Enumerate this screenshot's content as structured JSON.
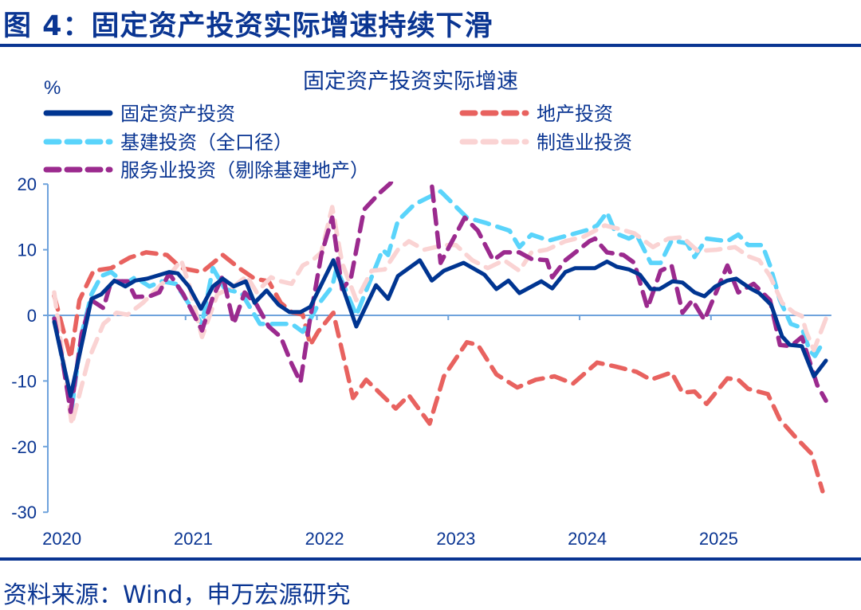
{
  "figure_title": "图 4：固定资产投资实际增速持续下滑",
  "source": "资料来源：Wind，申万宏源研究",
  "chart_data": {
    "type": "line",
    "title": "固定资产投资实际增速",
    "ylabel": "%",
    "xlabel": "",
    "x_unit": "months since Jan 2020",
    "xlim": [
      0,
      71
    ],
    "ylim": [
      -30,
      20
    ],
    "yticks": [
      20,
      10,
      0,
      -10,
      -20,
      -30
    ],
    "xtick_labels": [
      {
        "m": 0,
        "label": "2020"
      },
      {
        "m": 12,
        "label": "2021"
      },
      {
        "m": 24,
        "label": "2022"
      },
      {
        "m": 36,
        "label": "2023"
      },
      {
        "m": 48,
        "label": "2024"
      },
      {
        "m": 60,
        "label": "2025"
      }
    ],
    "grid": false,
    "legend_position": "top",
    "series": [
      {
        "name": "固定资产投资",
        "color": "#003591",
        "style": "solid",
        "points": [
          [
            0,
            -1
          ],
          [
            1.5,
            -12.3
          ],
          [
            3.4,
            2.5
          ],
          [
            4.3,
            3.2
          ],
          [
            5.5,
            5.3
          ],
          [
            6.5,
            4.4
          ],
          [
            7.4,
            5.3
          ],
          [
            8.5,
            5.6
          ],
          [
            10.5,
            6.6
          ],
          [
            11.3,
            6.4
          ],
          [
            12.3,
            4.4
          ],
          [
            13.4,
            1
          ],
          [
            14.5,
            4.4
          ],
          [
            15.4,
            5.6
          ],
          [
            16.4,
            4.4
          ],
          [
            17.5,
            5.2
          ],
          [
            18.3,
            1.9
          ],
          [
            19.4,
            3.8
          ],
          [
            20.5,
            1.6
          ],
          [
            21.5,
            0.5
          ],
          [
            22.5,
            0.5
          ],
          [
            23.4,
            1.3
          ],
          [
            25.5,
            8.4
          ],
          [
            27.6,
            -1.7
          ],
          [
            29.4,
            4.6
          ],
          [
            30.5,
            2.5
          ],
          [
            31.4,
            6
          ],
          [
            33.4,
            8.4
          ],
          [
            34.5,
            5.3
          ],
          [
            35.6,
            6.8
          ],
          [
            37.4,
            8
          ],
          [
            39.3,
            6.2
          ],
          [
            40.4,
            4
          ],
          [
            41.5,
            5.3
          ],
          [
            42.5,
            3.4
          ],
          [
            44.5,
            5.2
          ],
          [
            45.5,
            4.1
          ],
          [
            46.7,
            6.6
          ],
          [
            47.6,
            7.2
          ],
          [
            49.4,
            7.2
          ],
          [
            50.5,
            8.2
          ],
          [
            51.4,
            7.4
          ],
          [
            52.5,
            7
          ],
          [
            53.5,
            6.2
          ],
          [
            54.5,
            4
          ],
          [
            55.3,
            4
          ],
          [
            56.5,
            5.2
          ],
          [
            57.4,
            5
          ],
          [
            58.5,
            3.5
          ],
          [
            59.4,
            2.9
          ],
          [
            60.4,
            4.4
          ],
          [
            61.5,
            5.3
          ],
          [
            62.3,
            5.6
          ],
          [
            63.6,
            4.1
          ],
          [
            64.4,
            3.4
          ],
          [
            65.5,
            1.6
          ],
          [
            66.5,
            -3.2
          ],
          [
            67.2,
            -4.5
          ],
          [
            68.3,
            -4.7
          ],
          [
            69.4,
            -9.3
          ],
          [
            70.5,
            -6.9
          ]
        ]
      },
      {
        "name": "地产投资",
        "color": "#e8625f",
        "style": "dashed",
        "points": [
          [
            0,
            3
          ],
          [
            1.5,
            -6.5
          ],
          [
            2.3,
            2.3
          ],
          [
            3.6,
            6.8
          ],
          [
            5.2,
            7.2
          ],
          [
            6.9,
            8.8
          ],
          [
            8.4,
            9.6
          ],
          [
            10.3,
            9.2
          ],
          [
            11.6,
            7.2
          ],
          [
            13.5,
            6.6
          ],
          [
            15.4,
            9.2
          ],
          [
            16.9,
            7.2
          ],
          [
            18.3,
            5.6
          ],
          [
            19.6,
            5.2
          ],
          [
            20.7,
            1.9
          ],
          [
            21.7,
            0.5
          ],
          [
            22.7,
            0.1
          ],
          [
            23.4,
            -4.5
          ],
          [
            24.1,
            -2.5
          ],
          [
            25.5,
            0.4
          ],
          [
            27.3,
            -12.6
          ],
          [
            28.5,
            -9.8
          ],
          [
            31.2,
            -14.2
          ],
          [
            32.4,
            -12.2
          ],
          [
            34.3,
            -16.5
          ],
          [
            35.6,
            -9.3
          ],
          [
            37.7,
            -4.1
          ],
          [
            38.7,
            -4.5
          ],
          [
            40.4,
            -9
          ],
          [
            42.3,
            -11
          ],
          [
            44,
            -9.8
          ],
          [
            45.7,
            -9.3
          ],
          [
            47.4,
            -10.4
          ],
          [
            49.6,
            -7.2
          ],
          [
            51.3,
            -7.8
          ],
          [
            53.2,
            -8.6
          ],
          [
            54.5,
            -9.8
          ],
          [
            56.4,
            -8.7
          ],
          [
            57.4,
            -11.8
          ],
          [
            58.5,
            -11.6
          ],
          [
            59.6,
            -13.5
          ],
          [
            61.5,
            -9.6
          ],
          [
            62.5,
            -9.8
          ],
          [
            63.4,
            -11.2
          ],
          [
            65.2,
            -12
          ],
          [
            66.3,
            -15.9
          ],
          [
            67.8,
            -18.7
          ],
          [
            69.2,
            -21.1
          ],
          [
            70.2,
            -26.8
          ]
        ]
      },
      {
        "name": "基建投资（全口径）",
        "color": "#5ad4fb",
        "style": "dashed",
        "points": [
          [
            0,
            -0.4
          ],
          [
            1.6,
            -14.2
          ],
          [
            2.5,
            -2.9
          ],
          [
            3.4,
            3.2
          ],
          [
            4.3,
            6
          ],
          [
            5.2,
            6.6
          ],
          [
            6.5,
            4.8
          ],
          [
            7.4,
            5.8
          ],
          [
            8.7,
            4.4
          ],
          [
            9.8,
            5.2
          ],
          [
            11.1,
            4.8
          ],
          [
            13.5,
            -1.3
          ],
          [
            14.5,
            7.2
          ],
          [
            15.6,
            4
          ],
          [
            17.1,
            3.4
          ],
          [
            18.8,
            -1.3
          ],
          [
            20,
            -1.3
          ],
          [
            21.7,
            -1.3
          ],
          [
            22.7,
            -2.5
          ],
          [
            23.6,
            0
          ],
          [
            24.1,
            1.6
          ],
          [
            25.4,
            4.4
          ],
          [
            25.8,
            7.2
          ],
          [
            27.6,
            0
          ],
          [
            30,
            10
          ],
          [
            30.5,
            9.2
          ],
          [
            31.4,
            14.4
          ],
          [
            32.9,
            16.9
          ],
          [
            35.3,
            18.9
          ],
          [
            37.7,
            14.9
          ],
          [
            39.4,
            14.1
          ],
          [
            41.6,
            12.9
          ],
          [
            42.5,
            10.4
          ],
          [
            43.6,
            12.3
          ],
          [
            45.2,
            11.4
          ],
          [
            47.2,
            12.3
          ],
          [
            48.9,
            13.1
          ],
          [
            49.6,
            13.7
          ],
          [
            50.5,
            15.7
          ],
          [
            51.3,
            12.5
          ],
          [
            52.5,
            11.7
          ],
          [
            53.2,
            12.3
          ],
          [
            54.5,
            8
          ],
          [
            55.4,
            8
          ],
          [
            56.4,
            11.4
          ],
          [
            57.8,
            11
          ],
          [
            58.5,
            8.9
          ],
          [
            59.6,
            11.7
          ],
          [
            61.5,
            11.3
          ],
          [
            62.5,
            12.3
          ],
          [
            63.4,
            10.7
          ],
          [
            64.7,
            10.7
          ],
          [
            65.4,
            7.6
          ],
          [
            66.3,
            2.3
          ],
          [
            67.3,
            -1.3
          ],
          [
            68.3,
            -1.9
          ],
          [
            69,
            -5.3
          ],
          [
            69.5,
            -6.2
          ],
          [
            70.1,
            -4.5
          ]
        ]
      },
      {
        "name": "制造业投资",
        "color": "#fad3d3",
        "style": "dashed",
        "points": [
          [
            0,
            3.5
          ],
          [
            1.6,
            -16.6
          ],
          [
            3.1,
            -6.9
          ],
          [
            4.5,
            -1.3
          ],
          [
            5.7,
            0.4
          ],
          [
            6.7,
            0.1
          ],
          [
            8.1,
            1.9
          ],
          [
            10.1,
            5.2
          ],
          [
            11.6,
            8.4
          ],
          [
            12.3,
            4.8
          ],
          [
            13.5,
            -3.3
          ],
          [
            14.9,
            3.2
          ],
          [
            16.4,
            4.4
          ],
          [
            17.6,
            6
          ],
          [
            18.5,
            3.5
          ],
          [
            19.8,
            5.8
          ],
          [
            20.7,
            5.2
          ],
          [
            21.7,
            4.8
          ],
          [
            22.7,
            7.6
          ],
          [
            23.6,
            8.4
          ],
          [
            24.4,
            9.6
          ],
          [
            25.4,
            16.5
          ],
          [
            26.3,
            8
          ],
          [
            27.6,
            2.3
          ],
          [
            29,
            6.8
          ],
          [
            30.2,
            7
          ],
          [
            31.4,
            10
          ],
          [
            32.4,
            11.3
          ],
          [
            33.8,
            10
          ],
          [
            35.6,
            10.7
          ],
          [
            36.7,
            10.7
          ],
          [
            38.2,
            8.4
          ],
          [
            39.6,
            7.2
          ],
          [
            41.1,
            8.4
          ],
          [
            42.5,
            6.8
          ],
          [
            43.6,
            9.6
          ],
          [
            45,
            10
          ],
          [
            46.7,
            11.3
          ],
          [
            48.4,
            12
          ],
          [
            50.3,
            13.7
          ],
          [
            51.8,
            13.1
          ],
          [
            53,
            12.5
          ],
          [
            54.7,
            10.4
          ],
          [
            56.1,
            11.7
          ],
          [
            57.4,
            11.9
          ],
          [
            58.8,
            9.8
          ],
          [
            60.5,
            10
          ],
          [
            62.2,
            10.4
          ],
          [
            63.4,
            9
          ],
          [
            64.4,
            8.4
          ],
          [
            65.4,
            6
          ],
          [
            66.5,
            1.9
          ],
          [
            67.6,
            0.4
          ],
          [
            68.3,
            -0.1
          ],
          [
            68.7,
            -2.5
          ],
          [
            69.4,
            -5.3
          ],
          [
            70.5,
            -0.5
          ]
        ]
      },
      {
        "name": "服务业投资（剔除基建地产）",
        "color": "#9b2a8e",
        "style": "dashed",
        "points": [
          [
            0,
            -0.5
          ],
          [
            0.7,
            -6.2
          ],
          [
            1.5,
            -14.7
          ],
          [
            2.5,
            -2.9
          ],
          [
            3.4,
            2.3
          ],
          [
            4.5,
            1.1
          ],
          [
            5.2,
            5.2
          ],
          [
            6.7,
            5.2
          ],
          [
            7.4,
            2.8
          ],
          [
            8.7,
            2.9
          ],
          [
            9.6,
            3.5
          ],
          [
            10.5,
            6.4
          ],
          [
            11.8,
            3.2
          ],
          [
            13.5,
            -2.3
          ],
          [
            14.5,
            2.8
          ],
          [
            15.4,
            6
          ],
          [
            16.4,
            -1.3
          ],
          [
            17.4,
            3.5
          ],
          [
            18.5,
            1.6
          ],
          [
            19.6,
            -1.7
          ],
          [
            20.7,
            -3.3
          ],
          [
            21.7,
            -7.4
          ],
          [
            22.5,
            -10.2
          ],
          [
            23.3,
            -1.3
          ],
          [
            24.4,
            9.2
          ],
          [
            25.4,
            14.9
          ],
          [
            26.3,
            4
          ],
          [
            27.1,
            5.6
          ],
          [
            28.3,
            16.1
          ],
          [
            29.7,
            18.6
          ],
          [
            30.7,
            20.1
          ],
          [
            32.5,
            25
          ],
          [
            34.5,
            19.8
          ],
          [
            35.3,
            8
          ],
          [
            37.5,
            14.9
          ],
          [
            38.7,
            12.9
          ],
          [
            40.1,
            8.4
          ],
          [
            41.1,
            9.6
          ],
          [
            42.5,
            9.6
          ],
          [
            43.6,
            8.6
          ],
          [
            45,
            8.4
          ],
          [
            45.5,
            5.8
          ],
          [
            46.7,
            8.4
          ],
          [
            48.9,
            11.3
          ],
          [
            49.4,
            11.7
          ],
          [
            50.5,
            9.6
          ],
          [
            52,
            9.2
          ],
          [
            53,
            8
          ],
          [
            54.2,
            1.1
          ],
          [
            55.4,
            6.8
          ],
          [
            56.4,
            7.6
          ],
          [
            57.4,
            0.4
          ],
          [
            58.3,
            2.3
          ],
          [
            59.4,
            -0.7
          ],
          [
            61.5,
            7.6
          ],
          [
            62.5,
            3.5
          ],
          [
            63.9,
            4.8
          ],
          [
            65.4,
            2.3
          ],
          [
            66.3,
            -4.5
          ],
          [
            67.3,
            -4.7
          ],
          [
            68.3,
            -3.3
          ],
          [
            69.7,
            -10.6
          ],
          [
            70.5,
            -13
          ]
        ]
      }
    ]
  }
}
